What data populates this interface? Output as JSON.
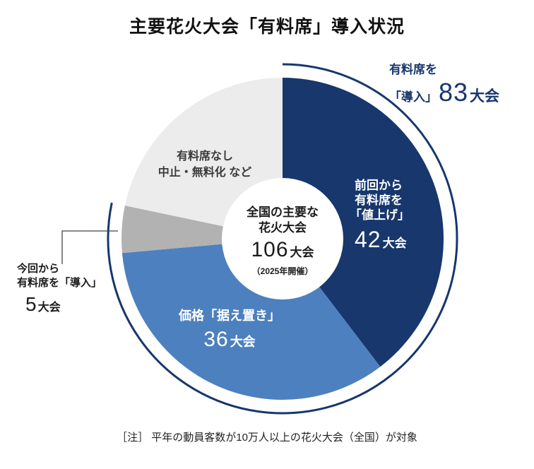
{
  "title": "主要花火大会「有料席」導入状況",
  "note": "［注］ 平年の動員客数が10万人以上の花火大会（全国）が対象",
  "center": {
    "line1": "全国の主要な",
    "line2": "花火大会",
    "value": "106",
    "unit": "大会",
    "subtitle": "（2025年開催）"
  },
  "labels": {
    "arc83": {
      "line1": "有料席を",
      "prefix": "「導入」",
      "value": "83",
      "unit": "大会"
    },
    "raise42": {
      "line1": "前回から",
      "line2": "有料席を",
      "line3": "「値上げ」",
      "value": "42",
      "unit": "大会"
    },
    "keep36": {
      "line1": "価格「据え置き」",
      "value": "36",
      "unit": "大会"
    },
    "none23": {
      "line1": "有料席なし",
      "line2": "中止・無料化 など"
    },
    "new5": {
      "line1": "今回から",
      "line2": "有料席を「導入」",
      "value": "5",
      "unit": "大会"
    }
  },
  "chart_data": {
    "type": "pie",
    "title": "主要花火大会「有料席」導入状況",
    "total": 106,
    "unit": "大会",
    "start_angle_deg": 0,
    "direction": "clockwise",
    "donut": true,
    "slices": [
      {
        "label": "前回から有料席を「値上げ」",
        "value": 42,
        "color": "#17376d"
      },
      {
        "label": "価格「据え置き」",
        "value": 36,
        "color": "#4d80be"
      },
      {
        "label": "今回から有料席を「導入」",
        "value": 5,
        "color": "#b2b2b2"
      },
      {
        "label": "有料席なし 中止・無料化 など",
        "value": 23,
        "color": "#ececec"
      }
    ],
    "outer_arc": {
      "label": "有料席を「導入」",
      "value": 83,
      "color": "#17376d"
    },
    "center_label": "全国の主要な花火大会 106大会（2025年開催）",
    "note": "平年の動員客数が10万人以上の花火大会（全国）が対象"
  },
  "colors": {
    "navy": "#17376d",
    "blue": "#4d80be",
    "gray": "#b2b2b2",
    "light_gray": "#ececec",
    "white": "#ffffff"
  }
}
